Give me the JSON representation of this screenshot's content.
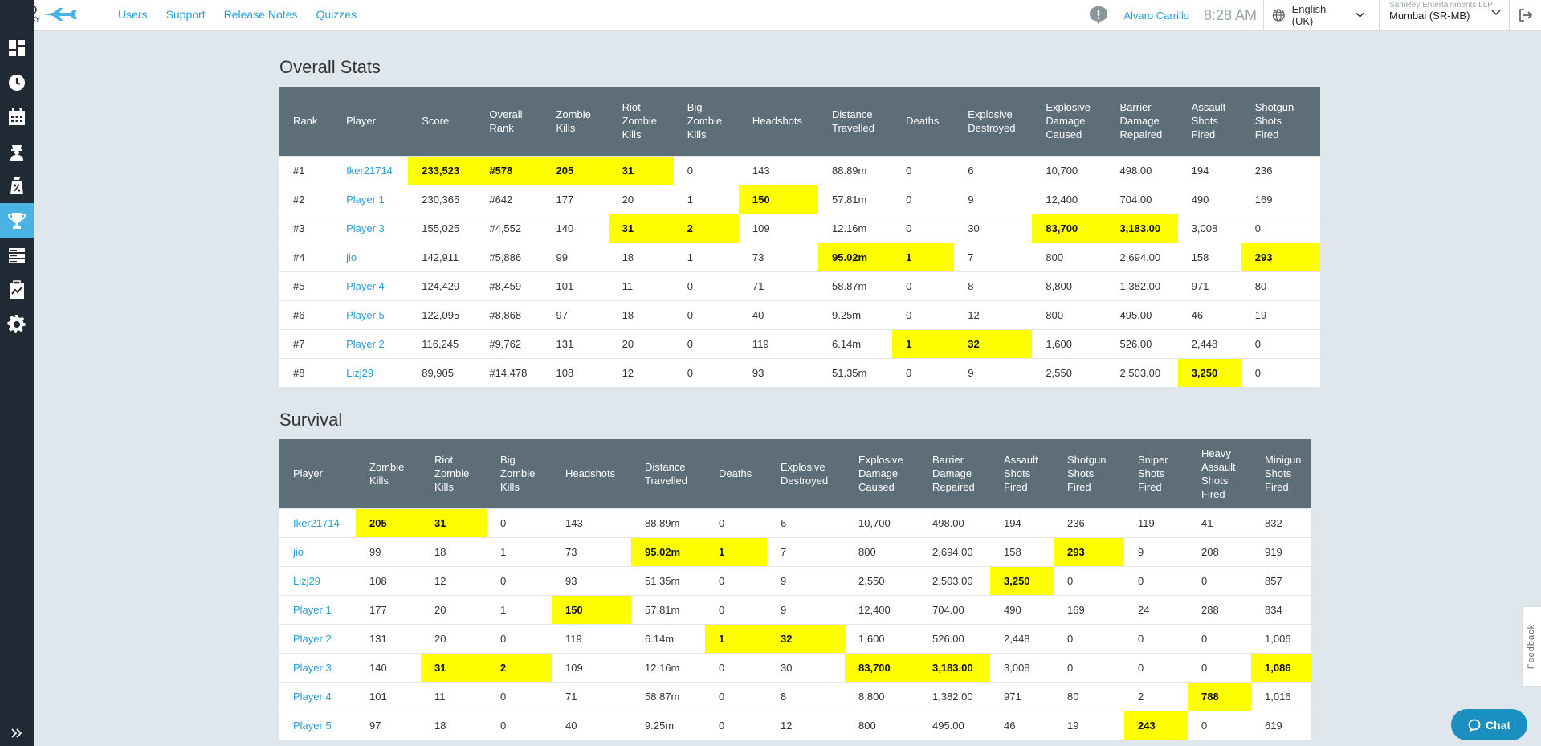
{
  "brand": {
    "line1": "ZERO",
    "line2": "LATENCY"
  },
  "nav": {
    "items": [
      "Users",
      "Support",
      "Release Notes",
      "Quizzes"
    ]
  },
  "header": {
    "user_name": "Alvaro Carrillo",
    "time": "8:28 AM",
    "language": "English (UK)",
    "org_name": "SamRey Entertainments LLP",
    "org_site": "Mumbai (SR-MB)"
  },
  "sidebar": {
    "items": [
      {
        "icon": "dashboard-icon"
      },
      {
        "icon": "clock-icon"
      },
      {
        "icon": "calendar-icon"
      },
      {
        "icon": "agent-icon"
      },
      {
        "icon": "discount-icon"
      },
      {
        "icon": "trophy-icon",
        "active": true
      },
      {
        "icon": "servers-icon"
      },
      {
        "icon": "clipboard-icon"
      },
      {
        "icon": "gear-icon"
      }
    ],
    "expand_icon": "double-chevron-right-icon"
  },
  "overall": {
    "title": "Overall Stats",
    "headers": [
      [
        "Rank"
      ],
      [
        "Player"
      ],
      [
        "Score"
      ],
      [
        "Overall",
        "Rank"
      ],
      [
        "Zombie",
        "Kills"
      ],
      [
        "Riot",
        "Zombie",
        "Kills"
      ],
      [
        "Big",
        "Zombie",
        "Kills"
      ],
      [
        "Headshots"
      ],
      [
        "Distance",
        "Travelled"
      ],
      [
        "Deaths"
      ],
      [
        "Explosive",
        "Destroyed"
      ],
      [
        "Explosive",
        "Damage",
        "Caused"
      ],
      [
        "Barrier",
        "Damage",
        "Repaired"
      ],
      [
        "Assault",
        "Shots",
        "Fired"
      ],
      [
        "Shotgun",
        "Shots",
        "Fired"
      ]
    ],
    "rows": [
      [
        "#1",
        "Iker21714",
        "233,523",
        "#578",
        "205",
        "31",
        "0",
        "143",
        "88.89m",
        "0",
        "6",
        "10,700",
        "498.00",
        "194",
        "236"
      ],
      [
        "#2",
        "Player 1",
        "230,365",
        "#642",
        "177",
        "20",
        "1",
        "150",
        "57.81m",
        "0",
        "9",
        "12,400",
        "704.00",
        "490",
        "169"
      ],
      [
        "#3",
        "Player 3",
        "155,025",
        "#4,552",
        "140",
        "31",
        "2",
        "109",
        "12.16m",
        "0",
        "30",
        "83,700",
        "3,183.00",
        "3,008",
        "0"
      ],
      [
        "#4",
        "jio",
        "142,911",
        "#5,886",
        "99",
        "18",
        "1",
        "73",
        "95.02m",
        "1",
        "7",
        "800",
        "2,694.00",
        "158",
        "293"
      ],
      [
        "#5",
        "Player 4",
        "124,429",
        "#8,459",
        "101",
        "11",
        "0",
        "71",
        "58.87m",
        "0",
        "8",
        "8,800",
        "1,382.00",
        "971",
        "80"
      ],
      [
        "#6",
        "Player 5",
        "122,095",
        "#8,868",
        "97",
        "18",
        "0",
        "40",
        "9.25m",
        "0",
        "12",
        "800",
        "495.00",
        "46",
        "19"
      ],
      [
        "#7",
        "Player 2",
        "116,245",
        "#9,762",
        "131",
        "20",
        "0",
        "119",
        "6.14m",
        "1",
        "32",
        "1,600",
        "526.00",
        "2,448",
        "0"
      ],
      [
        "#8",
        "Lizj29",
        "89,905",
        "#14,478",
        "108",
        "12",
        "0",
        "93",
        "51.35m",
        "0",
        "9",
        "2,550",
        "2,503.00",
        "3,250",
        "0"
      ]
    ],
    "highlights": [
      [
        0,
        2
      ],
      [
        0,
        3
      ],
      [
        0,
        4
      ],
      [
        0,
        5
      ],
      [
        1,
        7
      ],
      [
        2,
        5
      ],
      [
        2,
        6
      ],
      [
        2,
        11
      ],
      [
        2,
        12
      ],
      [
        3,
        8
      ],
      [
        3,
        9
      ],
      [
        3,
        14
      ],
      [
        6,
        9
      ],
      [
        6,
        10
      ],
      [
        7,
        13
      ]
    ]
  },
  "survival": {
    "title": "Survival",
    "headers": [
      [
        "Player"
      ],
      [
        "Zombie",
        "Kills"
      ],
      [
        "Riot",
        "Zombie",
        "Kills"
      ],
      [
        "Big",
        "Zombie",
        "Kills"
      ],
      [
        "Headshots"
      ],
      [
        "Distance",
        "Travelled"
      ],
      [
        "Deaths"
      ],
      [
        "Explosive",
        "Destroyed"
      ],
      [
        "Explosive",
        "Damage",
        "Caused"
      ],
      [
        "Barrier",
        "Damage",
        "Repaired"
      ],
      [
        "Assault",
        "Shots",
        "Fired"
      ],
      [
        "Shotgun",
        "Shots",
        "Fired"
      ],
      [
        "Sniper",
        "Shots",
        "Fired"
      ],
      [
        "Heavy",
        "Assault",
        "Shots",
        "Fired"
      ],
      [
        "Minigun",
        "Shots",
        "Fired"
      ]
    ],
    "rows": [
      [
        "Iker21714",
        "205",
        "31",
        "0",
        "143",
        "88.89m",
        "0",
        "6",
        "10,700",
        "498.00",
        "194",
        "236",
        "119",
        "41",
        "832"
      ],
      [
        "jio",
        "99",
        "18",
        "1",
        "73",
        "95.02m",
        "1",
        "7",
        "800",
        "2,694.00",
        "158",
        "293",
        "9",
        "208",
        "919"
      ],
      [
        "Lizj29",
        "108",
        "12",
        "0",
        "93",
        "51.35m",
        "0",
        "9",
        "2,550",
        "2,503.00",
        "3,250",
        "0",
        "0",
        "0",
        "857"
      ],
      [
        "Player 1",
        "177",
        "20",
        "1",
        "150",
        "57.81m",
        "0",
        "9",
        "12,400",
        "704.00",
        "490",
        "169",
        "24",
        "288",
        "834"
      ],
      [
        "Player 2",
        "131",
        "20",
        "0",
        "119",
        "6.14m",
        "1",
        "32",
        "1,600",
        "526.00",
        "2,448",
        "0",
        "0",
        "0",
        "1,006"
      ],
      [
        "Player 3",
        "140",
        "31",
        "2",
        "109",
        "12.16m",
        "0",
        "30",
        "83,700",
        "3,183.00",
        "3,008",
        "0",
        "0",
        "0",
        "1,086"
      ],
      [
        "Player 4",
        "101",
        "11",
        "0",
        "71",
        "58.87m",
        "0",
        "8",
        "8,800",
        "1,382.00",
        "971",
        "80",
        "2",
        "788",
        "1,016"
      ],
      [
        "Player 5",
        "97",
        "18",
        "0",
        "40",
        "9.25m",
        "0",
        "12",
        "800",
        "495.00",
        "46",
        "19",
        "243",
        "0",
        "619"
      ]
    ],
    "highlights": [
      [
        0,
        1
      ],
      [
        0,
        2
      ],
      [
        1,
        5
      ],
      [
        1,
        6
      ],
      [
        1,
        11
      ],
      [
        2,
        10
      ],
      [
        3,
        4
      ],
      [
        4,
        6
      ],
      [
        4,
        7
      ],
      [
        5,
        2
      ],
      [
        5,
        3
      ],
      [
        5,
        8
      ],
      [
        5,
        9
      ],
      [
        5,
        14
      ],
      [
        6,
        13
      ],
      [
        7,
        12
      ]
    ]
  },
  "feedback": {
    "label": "Feedback"
  },
  "chat": {
    "label": "Chat"
  }
}
